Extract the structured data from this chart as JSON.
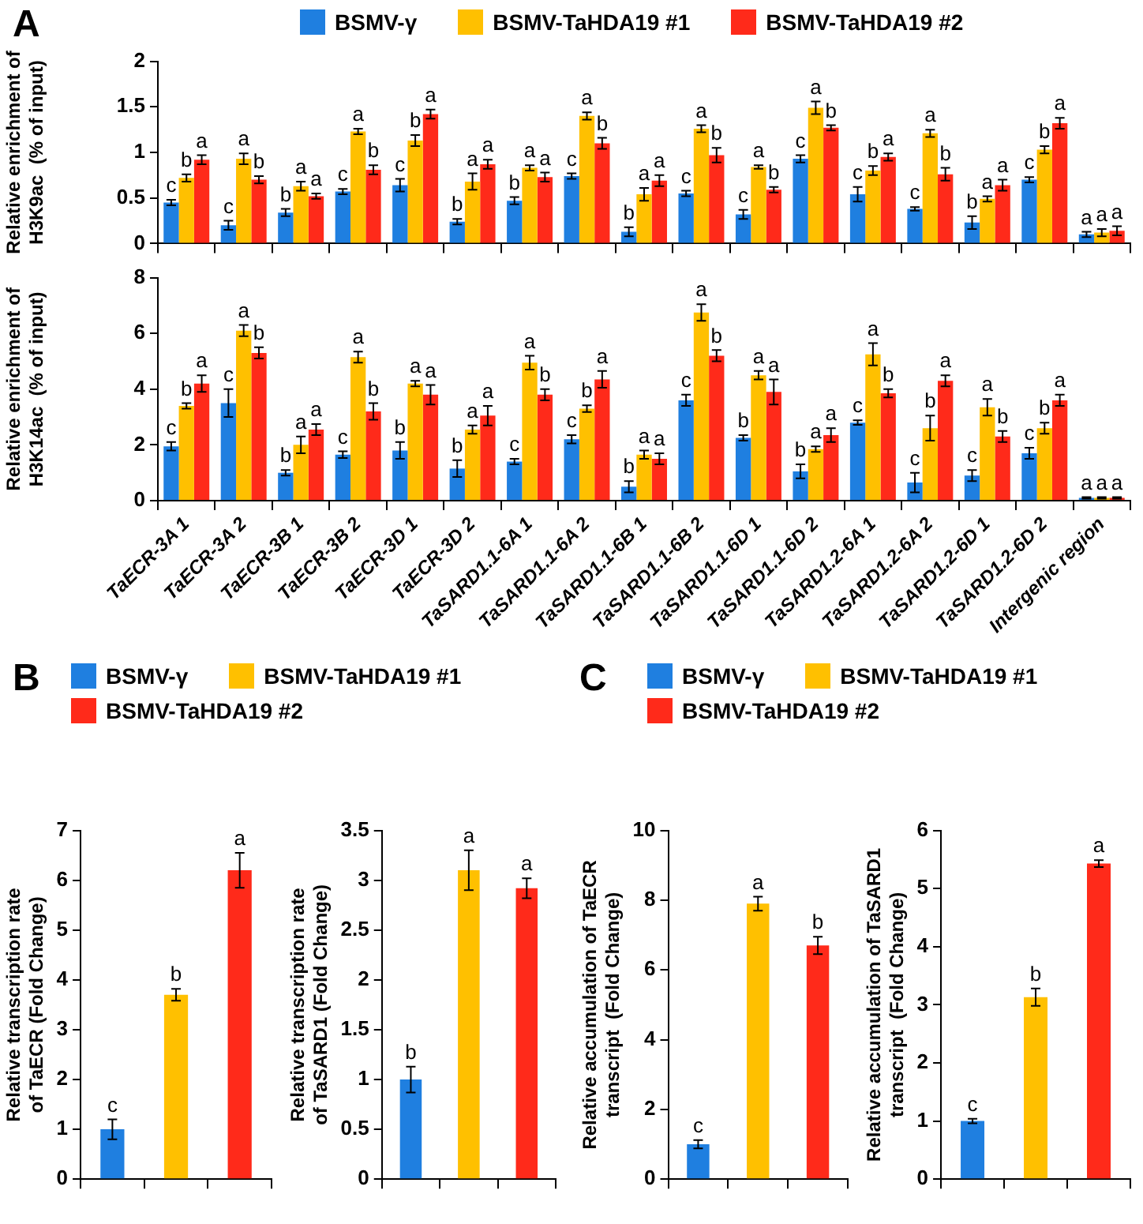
{
  "chart_data": [
    {
      "type": "bar",
      "ylabel": "Relative enrichment of\nH3K9ac  (% of input)",
      "annotations": [
        "A"
      ],
      "categories": [
        null,
        null,
        null,
        null,
        null,
        null,
        null,
        null,
        null,
        null,
        null,
        null,
        null,
        null,
        null,
        null,
        null
      ],
      "series": [
        {
          "name": "BSMV-γ",
          "color": "#1f7fe0",
          "values": [
            0.45,
            0.2,
            0.34,
            0.57,
            0.64,
            0.24,
            0.47,
            0.74,
            0.13,
            0.55,
            0.32,
            0.93,
            0.54,
            0.38,
            0.23,
            0.7,
            0.1
          ],
          "errors": [
            0.03,
            0.05,
            0.04,
            0.03,
            0.07,
            0.03,
            0.04,
            0.03,
            0.05,
            0.03,
            0.05,
            0.04,
            0.08,
            0.02,
            0.07,
            0.03,
            0.03
          ],
          "value_labels": [
            "c",
            "c",
            "b",
            "c",
            "c",
            "b",
            "b",
            "c",
            "b",
            "c",
            "c",
            "c",
            "c",
            "c",
            "b",
            "c",
            "a"
          ]
        },
        {
          "name": "BSMV-TaHDA19 #1",
          "color": "#ffc000",
          "values": [
            0.72,
            0.93,
            0.63,
            1.23,
            1.13,
            0.68,
            0.83,
            1.4,
            0.54,
            1.26,
            0.84,
            1.49,
            0.8,
            1.21,
            0.49,
            1.03,
            0.12
          ],
          "errors": [
            0.04,
            0.06,
            0.05,
            0.03,
            0.06,
            0.09,
            0.03,
            0.04,
            0.07,
            0.04,
            0.02,
            0.07,
            0.05,
            0.04,
            0.03,
            0.04,
            0.04
          ],
          "value_labels": [
            "b",
            "a",
            "a",
            "a",
            "b",
            "a",
            "a",
            "a",
            "a",
            "a",
            "a",
            "a",
            "b",
            "a",
            "a",
            "b",
            "a"
          ]
        },
        {
          "name": "BSMV-TaHDA19 #2",
          "color": "#ff2a1a",
          "values": [
            0.92,
            0.7,
            0.52,
            0.81,
            1.42,
            0.87,
            0.73,
            1.1,
            0.69,
            0.97,
            0.59,
            1.27,
            0.95,
            0.76,
            0.64,
            1.32,
            0.14
          ],
          "errors": [
            0.05,
            0.04,
            0.03,
            0.05,
            0.05,
            0.05,
            0.05,
            0.06,
            0.06,
            0.08,
            0.03,
            0.03,
            0.04,
            0.07,
            0.06,
            0.06,
            0.05
          ],
          "value_labels": [
            "a",
            "b",
            "a",
            "b",
            "a",
            "a",
            "a",
            "b",
            "a",
            "b",
            "b",
            "b",
            "a",
            "b",
            "a",
            "a",
            "a"
          ]
        }
      ],
      "ylim": [
        0,
        2
      ],
      "yticks": [
        0,
        0.5,
        1,
        1.5,
        2
      ],
      "grid": false,
      "legend": "top",
      "tick_labels": "y"
    },
    {
      "type": "bar",
      "ylabel": "Relative enrichment of\nH3K14ac  (% of input)",
      "categories": [
        "TaECR-3A 1",
        "TaECR-3A 2",
        "TaECR-3B 1",
        "TaECR-3B 2",
        "TaECR-3D 1",
        "TaECR-3D 2",
        "TaSARD1.1-6A 1",
        "TaSARD1.1-6A 2",
        "TaSARD1.1-6B 1",
        "TaSARD1.1-6B 2",
        "TaSARD1.1-6D 1",
        "TaSARD1.1-6D 2",
        "TaSARD1.2-6A 1",
        "TaSARD1.2-6A 2",
        "TaSARD1.2-6D 1",
        "TaSARD1.2-6D 2",
        "Intergenic region"
      ],
      "series": [
        {
          "color": "#1f7fe0",
          "values": [
            1.95,
            3.5,
            1.0,
            1.65,
            1.8,
            1.15,
            1.4,
            2.2,
            0.5,
            3.6,
            2.25,
            1.05,
            2.8,
            0.65,
            0.9,
            1.7,
            0.1
          ],
          "errors": [
            0.15,
            0.5,
            0.1,
            0.12,
            0.3,
            0.3,
            0.1,
            0.15,
            0.2,
            0.2,
            0.1,
            0.25,
            0.08,
            0.35,
            0.2,
            0.2,
            0.03
          ],
          "value_labels": [
            "c",
            "c",
            "b",
            "c",
            "b",
            "b",
            "c",
            "c",
            "b",
            "c",
            "b",
            "b",
            "c",
            "c",
            "c",
            "c",
            "a"
          ]
        },
        {
          "color": "#ffc000",
          "values": [
            3.4,
            6.1,
            2.0,
            5.15,
            4.2,
            2.55,
            4.95,
            3.3,
            1.65,
            6.75,
            4.5,
            1.85,
            5.25,
            2.6,
            3.35,
            2.6,
            0.1
          ],
          "errors": [
            0.1,
            0.2,
            0.3,
            0.2,
            0.1,
            0.15,
            0.25,
            0.12,
            0.15,
            0.3,
            0.15,
            0.1,
            0.4,
            0.45,
            0.3,
            0.2,
            0.03
          ],
          "value_labels": [
            "b",
            "a",
            "a",
            "a",
            "a",
            "a",
            "a",
            "b",
            "a",
            "a",
            "a",
            "a",
            "a",
            "b",
            "a",
            "b",
            "a"
          ]
        },
        {
          "color": "#ff2a1a",
          "values": [
            4.2,
            5.3,
            2.55,
            3.2,
            3.8,
            3.05,
            3.8,
            4.35,
            1.5,
            5.2,
            3.9,
            2.35,
            3.85,
            4.3,
            2.3,
            3.6,
            0.1
          ],
          "errors": [
            0.3,
            0.2,
            0.2,
            0.3,
            0.35,
            0.35,
            0.2,
            0.3,
            0.2,
            0.2,
            0.45,
            0.25,
            0.15,
            0.2,
            0.2,
            0.2,
            0.03
          ],
          "value_labels": [
            "a",
            "b",
            "a",
            "b",
            "a",
            "a",
            "b",
            "a",
            "a",
            "b",
            "a",
            "a",
            "b",
            "a",
            "b",
            "a",
            "a"
          ]
        }
      ],
      "ylim": [
        0,
        8
      ],
      "yticks": [
        0,
        2,
        4,
        6,
        8
      ],
      "grid": false
    },
    {
      "type": "bar",
      "ylabel": "Relative transcription rate\nof TaECR (Fold Change)",
      "annotations": [
        "B"
      ],
      "categories": [
        null,
        null,
        null
      ],
      "series": [
        {
          "name": "BSMV-γ",
          "color": "#1f7fe0",
          "values": [
            1.0,
            null,
            null
          ],
          "errors": [
            0.2,
            null,
            null
          ],
          "value_labels": [
            "c",
            null,
            null
          ]
        },
        {
          "name": "BSMV-TaHDA19 #1",
          "color": "#ffc000",
          "values": [
            null,
            3.7,
            null
          ],
          "errors": [
            null,
            0.12,
            null
          ],
          "value_labels": [
            null,
            "b",
            null
          ]
        },
        {
          "name": "BSMV-TaHDA19 #2",
          "color": "#ff2a1a",
          "values": [
            null,
            null,
            6.2
          ],
          "errors": [
            null,
            null,
            0.35
          ],
          "value_labels": [
            null,
            null,
            "a"
          ]
        }
      ],
      "ylim": [
        0,
        7
      ],
      "yticks": [
        0,
        1,
        2,
        3,
        4,
        5,
        6,
        7
      ],
      "grid": false,
      "legend": "top"
    },
    {
      "type": "bar",
      "ylabel": "Relative transcription rate\nof TaSARD1 (Fold Change)",
      "categories": [
        null,
        null,
        null
      ],
      "series": [
        {
          "color": "#1f7fe0",
          "values": [
            1.0,
            null,
            null
          ],
          "errors": [
            0.13,
            null,
            null
          ],
          "value_labels": [
            "b",
            null,
            null
          ]
        },
        {
          "color": "#ffc000",
          "values": [
            null,
            3.1,
            null
          ],
          "errors": [
            null,
            0.2,
            null
          ],
          "value_labels": [
            null,
            "a",
            null
          ]
        },
        {
          "color": "#ff2a1a",
          "values": [
            null,
            null,
            2.92
          ],
          "errors": [
            null,
            null,
            0.1
          ],
          "value_labels": [
            null,
            null,
            "a"
          ]
        }
      ],
      "ylim": [
        0,
        3.5
      ],
      "yticks": [
        0,
        0.5,
        1,
        1.5,
        2,
        2.5,
        3,
        3.5
      ],
      "grid": false
    },
    {
      "type": "bar",
      "ylabel": "Relative accumulation of TaECR\ntranscript  (Fold Change)",
      "annotations": [
        "C"
      ],
      "categories": [
        null,
        null,
        null
      ],
      "series": [
        {
          "name": "BSMV-γ",
          "color": "#1f7fe0",
          "values": [
            1.0,
            null,
            null
          ],
          "errors": [
            0.12,
            null,
            null
          ],
          "value_labels": [
            "c",
            null,
            null
          ]
        },
        {
          "name": "BSMV-TaHDA19 #1",
          "color": "#ffc000",
          "values": [
            null,
            7.9,
            null
          ],
          "errors": [
            null,
            0.2,
            null
          ],
          "value_labels": [
            null,
            "a",
            null
          ]
        },
        {
          "name": "BSMV-TaHDA19 #2",
          "color": "#ff2a1a",
          "values": [
            null,
            null,
            6.7
          ],
          "errors": [
            null,
            null,
            0.25
          ],
          "value_labels": [
            null,
            null,
            "b"
          ]
        }
      ],
      "ylim": [
        0,
        10
      ],
      "yticks": [
        0,
        2,
        4,
        6,
        8,
        10
      ],
      "grid": false,
      "legend": "top"
    },
    {
      "type": "bar",
      "ylabel": "Relative accumulation of TaSARD1\ntranscript  (Fold Change)",
      "categories": [
        null,
        null,
        null
      ],
      "series": [
        {
          "color": "#1f7fe0",
          "values": [
            1.0,
            null,
            null
          ],
          "errors": [
            0.04,
            null,
            null
          ],
          "value_labels": [
            "c",
            null,
            null
          ]
        },
        {
          "color": "#ffc000",
          "values": [
            null,
            3.13,
            null
          ],
          "errors": [
            null,
            0.15,
            null
          ],
          "value_labels": [
            null,
            "b",
            null
          ]
        },
        {
          "color": "#ff2a1a",
          "values": [
            null,
            null,
            5.43
          ],
          "errors": [
            null,
            null,
            0.06
          ],
          "value_labels": [
            null,
            null,
            "a"
          ]
        }
      ],
      "ylim": [
        0,
        6
      ],
      "yticks": [
        0,
        1,
        2,
        3,
        4,
        5,
        6
      ],
      "grid": false
    }
  ]
}
